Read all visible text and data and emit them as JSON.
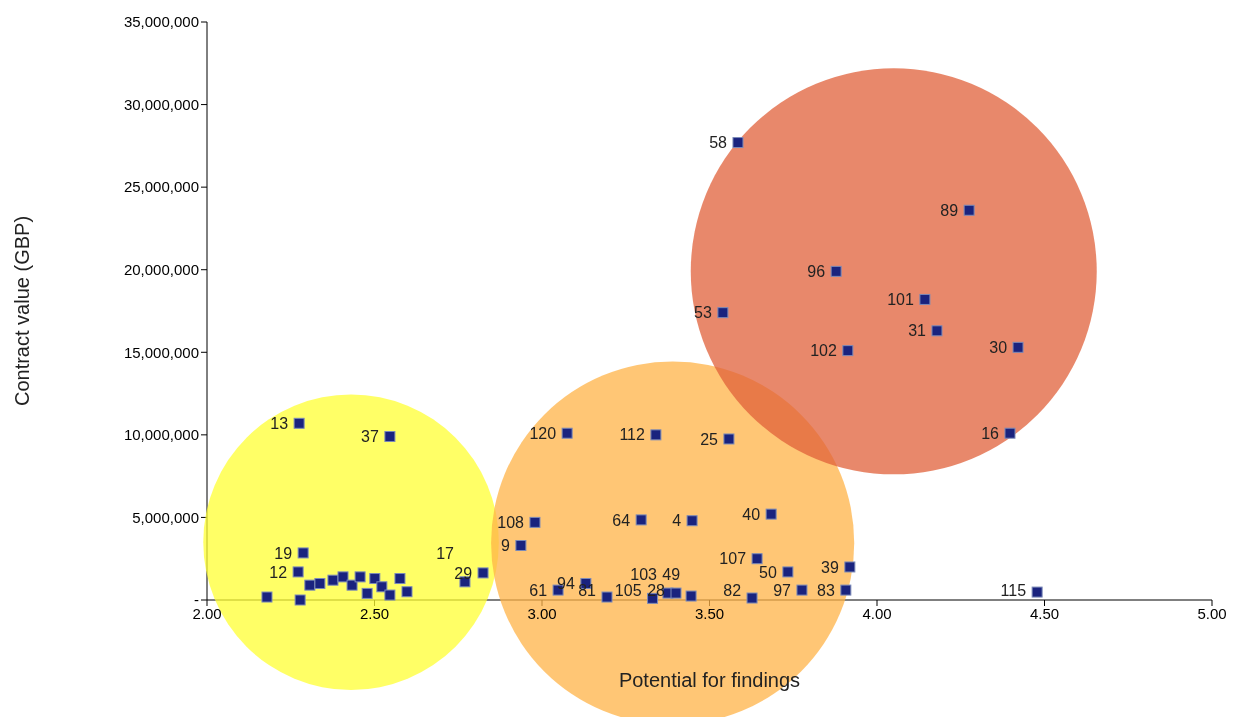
{
  "chart_data": {
    "type": "scatter",
    "xlabel": "Potential for findings",
    "ylabel": "Contract value (GBP)",
    "xlim": [
      2,
      5
    ],
    "xticks": [
      {
        "value": 2,
        "label": "2.00"
      },
      {
        "value": 2.5,
        "label": "2.50"
      },
      {
        "value": 3,
        "label": "3.00"
      },
      {
        "value": 3.5,
        "label": "3.50"
      },
      {
        "value": 4,
        "label": "4.00"
      },
      {
        "value": 4.5,
        "label": "4.50"
      },
      {
        "value": 5,
        "label": "5.00"
      }
    ],
    "ylim": [
      0,
      35000000
    ],
    "yticks": [
      {
        "value": 0,
        "label": "-"
      },
      {
        "value": 5000000,
        "label": "5,000,000"
      },
      {
        "value": 10000000,
        "label": "10,000,000"
      },
      {
        "value": 15000000,
        "label": "15,000,000"
      },
      {
        "value": 20000000,
        "label": "20,000,000"
      },
      {
        "value": 25000000,
        "label": "25,000,000"
      },
      {
        "value": 30000000,
        "label": "30,000,000"
      },
      {
        "value": 35000000,
        "label": "35,000,000"
      }
    ],
    "series": [
      {
        "type": "bubble",
        "color": "#ffff33",
        "x": [
          2.43
        ],
        "values": [
          3500000
        ],
        "sizes": [
          0.53
        ]
      },
      {
        "type": "bubble",
        "color": "#ffb347",
        "x": [
          3.39
        ],
        "values": [
          3450000
        ],
        "sizes": [
          0.8
        ]
      },
      {
        "type": "bubble",
        "color": "#e0603a",
        "x": [
          4.05
        ],
        "values": [
          19900000
        ],
        "sizes": [
          1
        ]
      },
      {
        "color": "#1a237e",
        "marker": "square",
        "x": [
          3.585,
          4.275,
          3.878,
          4.143,
          3.54,
          4.179,
          3.913,
          4.421,
          4.397,
          4.478,
          2.275,
          2.546,
          3.075,
          3.34,
          3.558,
          2.979,
          3.296,
          3.448,
          3.684,
          2.937,
          3.642,
          3.734,
          3.919,
          2.287,
          2.272,
          2.824,
          2.77,
          3.048,
          3.131,
          3.194,
          3.33,
          3.376,
          3.4,
          3.445,
          3.627,
          3.776,
          3.907,
          2.179,
          2.278,
          2.307,
          2.337,
          2.376,
          2.406,
          2.433,
          2.457,
          2.478,
          2.501,
          2.522,
          2.546,
          2.576,
          2.597
        ],
        "values": [
          27700000,
          23600000,
          19900000,
          18200000,
          17400000,
          16300000,
          15100000,
          15300000,
          10100000,
          480000,
          10700000,
          9900000,
          10100000,
          10000000,
          9750000,
          4700000,
          4850000,
          4800000,
          5200000,
          3300000,
          2500000,
          1700000,
          2000000,
          2850000,
          1700000,
          1640000,
          1100000,
          600000,
          1000000,
          180000,
          100000,
          420000,
          420000,
          240000,
          120000,
          600000,
          600000,
          180000,
          0,
          900000,
          1000000,
          1200000,
          1400000,
          900000,
          1400000,
          400000,
          1300000,
          800000,
          300000,
          1300000,
          500000
        ]
      }
    ],
    "annotations": [
      {
        "text": "58",
        "x": 3.585,
        "y": 27700000
      },
      {
        "text": "89",
        "x": 4.275,
        "y": 23600000
      },
      {
        "text": "96",
        "x": 3.878,
        "y": 19900000
      },
      {
        "text": "101",
        "x": 4.143,
        "y": 18200000
      },
      {
        "text": "53",
        "x": 3.54,
        "y": 17400000
      },
      {
        "text": "31",
        "x": 4.179,
        "y": 16300000
      },
      {
        "text": "102",
        "x": 3.913,
        "y": 15100000
      },
      {
        "text": "30",
        "x": 4.421,
        "y": 15300000
      },
      {
        "text": "16",
        "x": 4.397,
        "y": 10100000
      },
      {
        "text": "115",
        "x": 4.478,
        "y": 480000
      },
      {
        "text": "13",
        "x": 2.275,
        "y": 10700000
      },
      {
        "text": "37",
        "x": 2.546,
        "y": 9900000
      },
      {
        "text": "120",
        "x": 3.075,
        "y": 10100000
      },
      {
        "text": "112",
        "x": 3.34,
        "y": 10000000
      },
      {
        "text": "25",
        "x": 3.558,
        "y": 9750000
      },
      {
        "text": "108",
        "x": 2.979,
        "y": 4700000
      },
      {
        "text": "64",
        "x": 3.296,
        "y": 4850000
      },
      {
        "text": "4",
        "x": 3.448,
        "y": 4800000
      },
      {
        "text": "40",
        "x": 3.684,
        "y": 5200000
      },
      {
        "text": "9",
        "x": 2.937,
        "y": 3300000
      },
      {
        "text": "107",
        "x": 3.642,
        "y": 2500000
      },
      {
        "text": "50",
        "x": 3.734,
        "y": 1700000
      },
      {
        "text": "39",
        "x": 3.919,
        "y": 2000000
      },
      {
        "text": "19",
        "x": 2.287,
        "y": 2850000
      },
      {
        "text": "12",
        "x": 2.272,
        "y": 1700000
      },
      {
        "text": "29",
        "x": 2.824,
        "y": 1640000
      },
      {
        "text": "17",
        "x": 2.77,
        "y": 1100000
      },
      {
        "text": "61",
        "x": 3.048,
        "y": 600000
      },
      {
        "text": "94",
        "x": 3.131,
        "y": 1000000
      },
      {
        "text": "81",
        "x": 3.194,
        "y": 180000
      },
      {
        "text": "105",
        "x": 3.33,
        "y": 100000
      },
      {
        "text": "103",
        "x": 3.376,
        "y": 420000
      },
      {
        "text": "28",
        "x": 3.4,
        "y": 420000
      },
      {
        "text": "49",
        "x": 3.445,
        "y": 240000
      },
      {
        "text": "82",
        "x": 3.627,
        "y": 120000
      },
      {
        "text": "97",
        "x": 3.776,
        "y": 600000
      },
      {
        "text": "83",
        "x": 3.907,
        "y": 600000
      }
    ]
  }
}
